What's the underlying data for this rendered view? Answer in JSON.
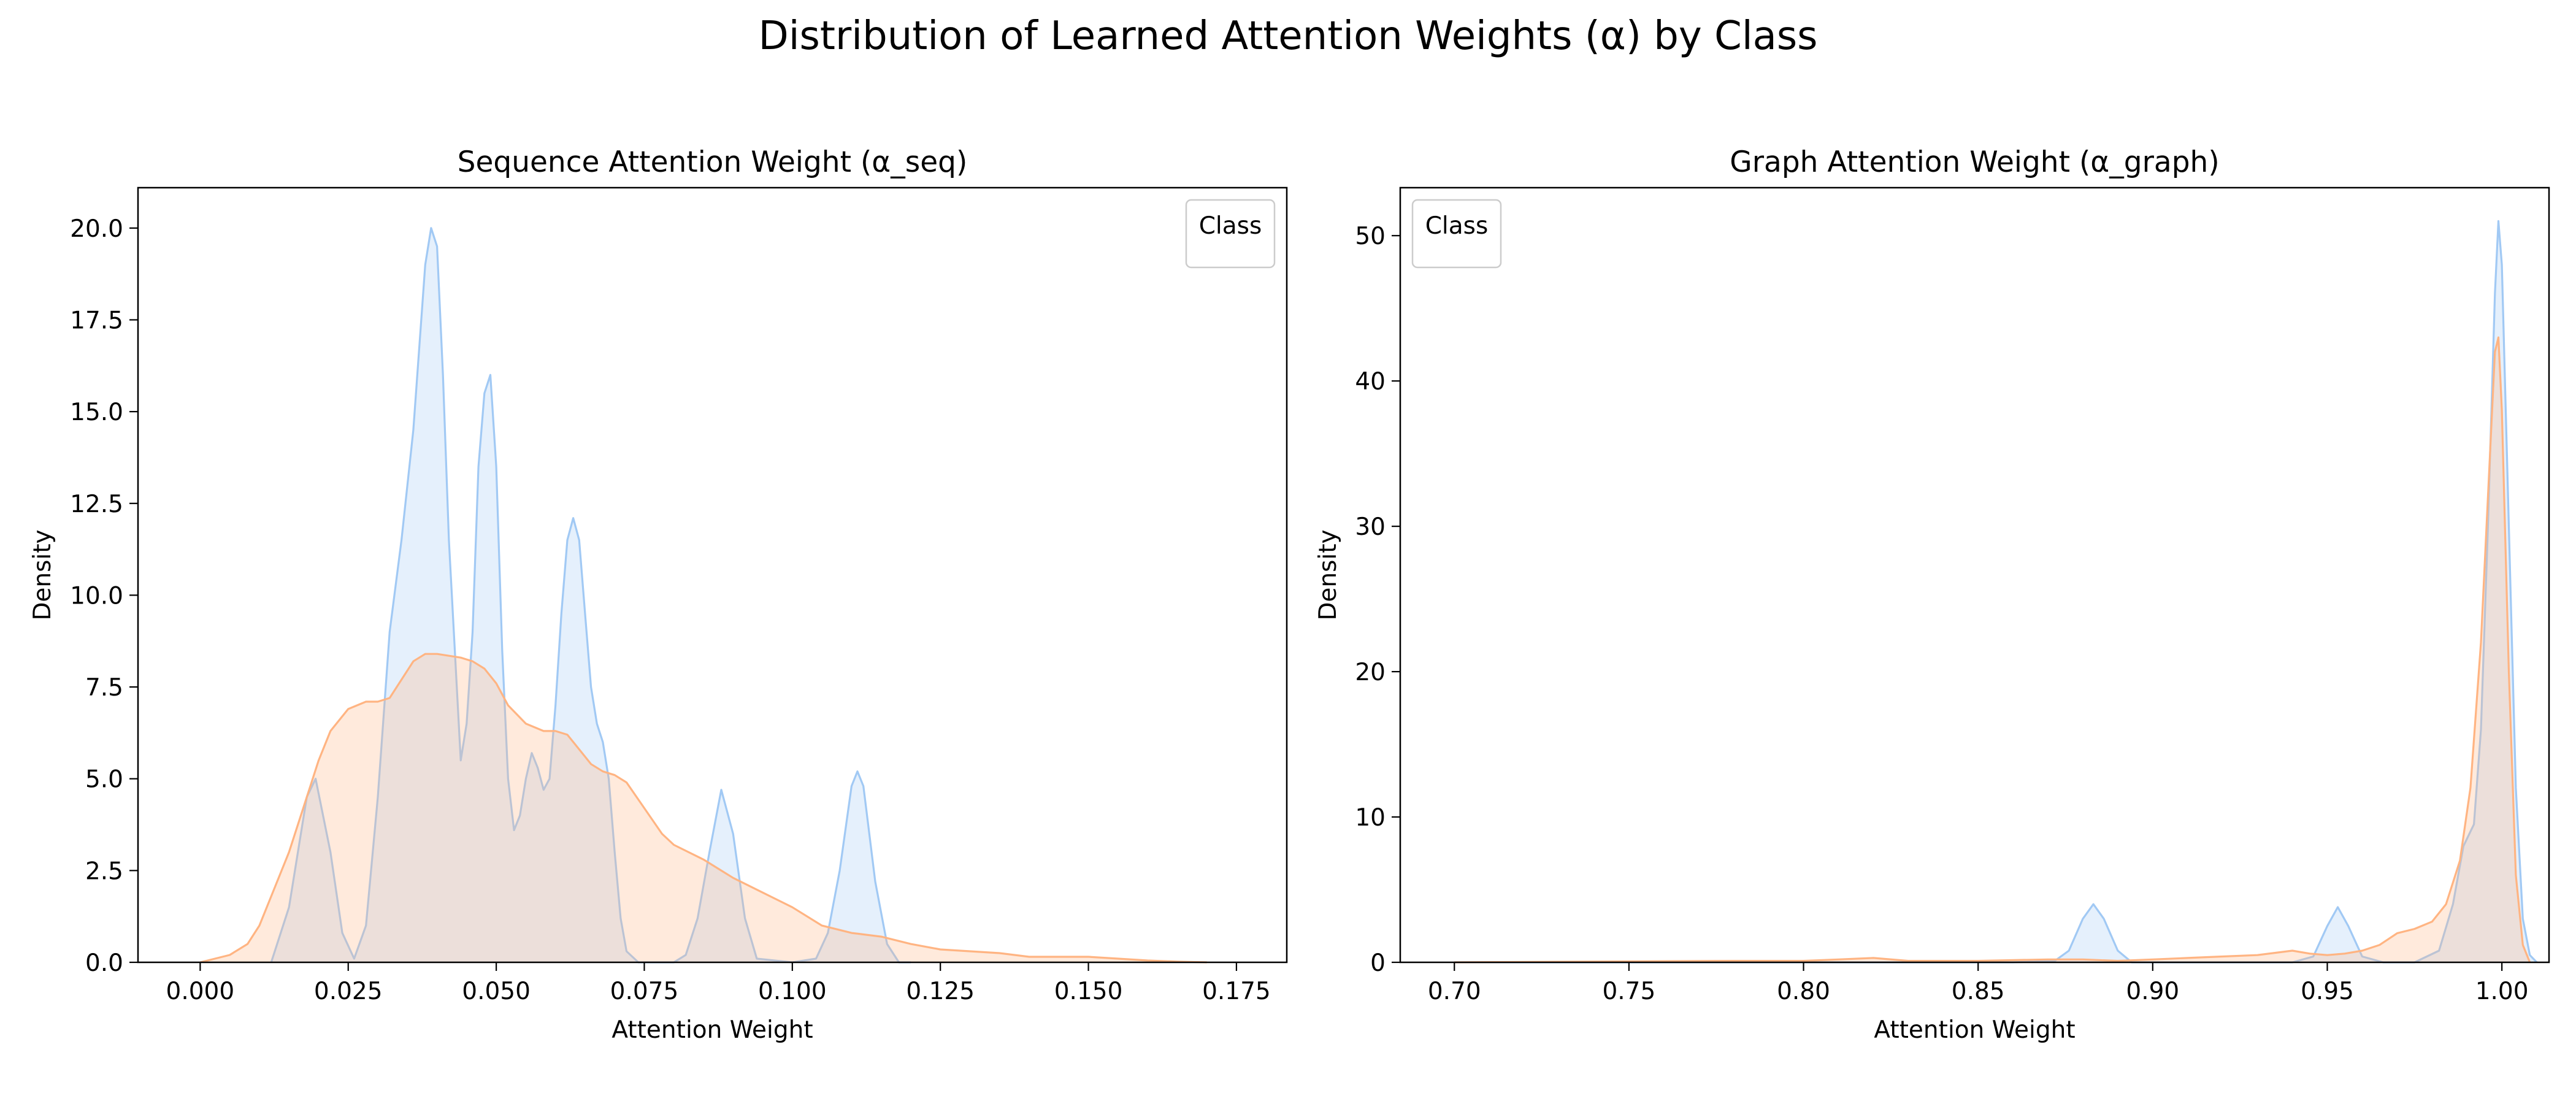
{
  "figure": {
    "title": "Distribution of Learned Attention Weights (α) by Class"
  },
  "colors": {
    "series_a": "#a1c9f4",
    "series_a_fill": "rgba(161,201,244,0.28)",
    "series_b": "#ffb482",
    "series_b_fill": "rgba(255,180,130,0.28)",
    "axis": "#000000"
  },
  "chart_data": [
    {
      "type": "area",
      "kind": "kde",
      "title": "Sequence Attention Weight (α_seq)",
      "xlabel": "Attention Weight",
      "ylabel": "Density",
      "xlim": [
        -0.0105,
        0.1835
      ],
      "ylim": [
        0,
        21.1
      ],
      "xticks": [
        0.0,
        0.025,
        0.05,
        0.075,
        0.1,
        0.125,
        0.15,
        0.175
      ],
      "xtick_labels": [
        "0.000",
        "0.025",
        "0.050",
        "0.075",
        "0.100",
        "0.125",
        "0.150",
        "0.175"
      ],
      "yticks": [
        0,
        2.5,
        5,
        7.5,
        10,
        12.5,
        15,
        17.5,
        20
      ],
      "ytick_labels": [
        "0.0",
        "2.5",
        "5.0",
        "7.5",
        "10.0",
        "12.5",
        "15.0",
        "17.5",
        "20.0"
      ],
      "grid": false,
      "legend": {
        "title": "Class",
        "placement": "upper right",
        "entries": []
      },
      "series": [
        {
          "color_key": "series_a",
          "x": [
            0.012,
            0.015,
            0.018,
            0.0195,
            0.022,
            0.024,
            0.026,
            0.028,
            0.03,
            0.032,
            0.034,
            0.036,
            0.038,
            0.039,
            0.04,
            0.041,
            0.042,
            0.044,
            0.045,
            0.046,
            0.047,
            0.048,
            0.049,
            0.05,
            0.051,
            0.052,
            0.053,
            0.054,
            0.055,
            0.056,
            0.057,
            0.058,
            0.059,
            0.06,
            0.061,
            0.062,
            0.063,
            0.064,
            0.065,
            0.066,
            0.067,
            0.068,
            0.069,
            0.07,
            0.071,
            0.072,
            0.074,
            0.076,
            0.078,
            0.08,
            0.082,
            0.084,
            0.086,
            0.088,
            0.09,
            0.092,
            0.094,
            0.1,
            0.104,
            0.106,
            0.108,
            0.11,
            0.111,
            0.112,
            0.114,
            0.116,
            0.118,
            0.12
          ],
          "y": [
            0.0,
            1.5,
            4.5,
            5.0,
            3.0,
            0.8,
            0.1,
            1.0,
            4.5,
            9.0,
            11.5,
            14.5,
            19.0,
            20.0,
            19.5,
            16.0,
            11.5,
            5.5,
            6.5,
            9.0,
            13.5,
            15.5,
            16.0,
            13.5,
            8.5,
            5.0,
            3.6,
            4.0,
            5.0,
            5.7,
            5.3,
            4.7,
            5.0,
            7.0,
            9.5,
            11.5,
            12.1,
            11.5,
            9.5,
            7.5,
            6.5,
            6.0,
            5.0,
            3.0,
            1.2,
            0.3,
            0.0,
            0.0,
            0.0,
            0.0,
            0.2,
            1.2,
            3.0,
            4.7,
            3.5,
            1.2,
            0.1,
            0.0,
            0.1,
            0.8,
            2.5,
            4.8,
            5.2,
            4.8,
            2.2,
            0.5,
            0.0,
            0.0
          ]
        },
        {
          "color_key": "series_b",
          "x": [
            0.0,
            0.005,
            0.008,
            0.01,
            0.012,
            0.015,
            0.018,
            0.02,
            0.022,
            0.025,
            0.028,
            0.03,
            0.032,
            0.034,
            0.036,
            0.038,
            0.04,
            0.042,
            0.044,
            0.046,
            0.048,
            0.05,
            0.052,
            0.055,
            0.058,
            0.06,
            0.062,
            0.064,
            0.066,
            0.068,
            0.07,
            0.072,
            0.075,
            0.078,
            0.08,
            0.085,
            0.088,
            0.09,
            0.095,
            0.1,
            0.105,
            0.11,
            0.115,
            0.12,
            0.125,
            0.13,
            0.135,
            0.14,
            0.145,
            0.15,
            0.155,
            0.16,
            0.165,
            0.17
          ],
          "y": [
            0.0,
            0.2,
            0.5,
            1.0,
            1.8,
            3.0,
            4.5,
            5.5,
            6.3,
            6.9,
            7.1,
            7.1,
            7.2,
            7.7,
            8.2,
            8.4,
            8.4,
            8.35,
            8.3,
            8.2,
            8.0,
            7.6,
            7.0,
            6.5,
            6.3,
            6.3,
            6.2,
            5.8,
            5.4,
            5.2,
            5.1,
            4.9,
            4.2,
            3.5,
            3.2,
            2.8,
            2.5,
            2.3,
            1.9,
            1.5,
            1.0,
            0.8,
            0.7,
            0.5,
            0.35,
            0.3,
            0.25,
            0.15,
            0.15,
            0.15,
            0.1,
            0.05,
            0.02,
            0.0
          ]
        }
      ]
    },
    {
      "type": "area",
      "kind": "kde",
      "title": "Graph Attention Weight (α_graph)",
      "xlabel": "Attention Weight",
      "ylabel": "Density",
      "xlim": [
        0.6845,
        1.0135
      ],
      "ylim": [
        0,
        53.3
      ],
      "xticks": [
        0.7,
        0.75,
        0.8,
        0.85,
        0.9,
        0.95,
        1.0
      ],
      "xtick_labels": [
        "0.70",
        "0.75",
        "0.80",
        "0.85",
        "0.90",
        "0.95",
        "1.00"
      ],
      "yticks": [
        0,
        10,
        20,
        30,
        40,
        50
      ],
      "ytick_labels": [
        "0",
        "10",
        "20",
        "30",
        "40",
        "50"
      ],
      "grid": false,
      "legend": {
        "title": "Class",
        "placement": "upper left",
        "entries": []
      },
      "series": [
        {
          "color_key": "series_a",
          "x": [
            0.7,
            0.86,
            0.872,
            0.876,
            0.88,
            0.883,
            0.886,
            0.89,
            0.894,
            0.94,
            0.946,
            0.95,
            0.953,
            0.956,
            0.96,
            0.966,
            0.975,
            0.982,
            0.986,
            0.989,
            0.992,
            0.994,
            0.996,
            0.998,
            0.999,
            1.0,
            1.002,
            1.004,
            1.006,
            1.008,
            1.01
          ],
          "y": [
            0.0,
            0.0,
            0.1,
            0.8,
            3.0,
            4.0,
            3.0,
            0.8,
            0.0,
            0.0,
            0.4,
            2.5,
            3.8,
            2.5,
            0.4,
            0.0,
            0.0,
            0.8,
            4.0,
            8.0,
            9.5,
            16.0,
            30.0,
            46.0,
            51.0,
            48.0,
            30.0,
            12.0,
            3.0,
            0.5,
            0.0
          ]
        },
        {
          "color_key": "series_b",
          "x": [
            0.7,
            0.78,
            0.8,
            0.81,
            0.82,
            0.83,
            0.85,
            0.87,
            0.88,
            0.89,
            0.9,
            0.91,
            0.92,
            0.93,
            0.94,
            0.945,
            0.95,
            0.955,
            0.96,
            0.965,
            0.97,
            0.975,
            0.98,
            0.984,
            0.988,
            0.991,
            0.994,
            0.996,
            0.998,
            0.999,
            1.0,
            1.002,
            1.004,
            1.006,
            1.008
          ],
          "y": [
            0.0,
            0.1,
            0.1,
            0.2,
            0.3,
            0.1,
            0.1,
            0.2,
            0.2,
            0.1,
            0.2,
            0.3,
            0.4,
            0.5,
            0.8,
            0.6,
            0.5,
            0.6,
            0.8,
            1.2,
            2.0,
            2.3,
            2.8,
            4.0,
            7.0,
            12.0,
            22.0,
            32.0,
            42.0,
            43.0,
            38.0,
            20.0,
            6.0,
            1.2,
            0.0
          ]
        }
      ]
    }
  ]
}
